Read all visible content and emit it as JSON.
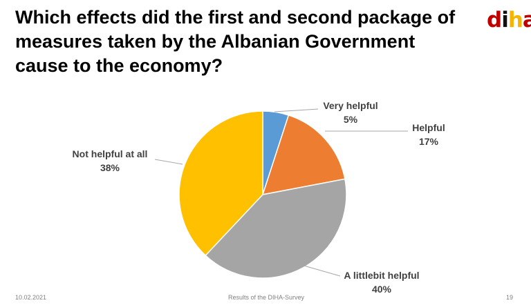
{
  "title_lines": [
    "Which effects did the first and second package of",
    "measures taken by the Albanian Government",
    "cause to the economy?"
  ],
  "logo": {
    "d": "d",
    "i": "i",
    "h": "h",
    "a": "a"
  },
  "chart_data": {
    "type": "pie",
    "title": "",
    "start_angle_deg": 0,
    "direction": "clockwise",
    "slices": [
      {
        "label": "Very helpful",
        "value": 5,
        "display": "5%",
        "color": "#5b9bd5"
      },
      {
        "label": "Helpful",
        "value": 17,
        "display": "17%",
        "color": "#ed7d31"
      },
      {
        "label": "A littlebit helpful",
        "value": 40,
        "display": "40%",
        "color": "#a5a5a5"
      },
      {
        "label": "Not helpful at all",
        "value": 38,
        "display": "38%",
        "color": "#ffc000"
      }
    ]
  },
  "footer": {
    "date": "10.02.2021",
    "source": "Results of the DIHA-Survey",
    "page": "19"
  }
}
